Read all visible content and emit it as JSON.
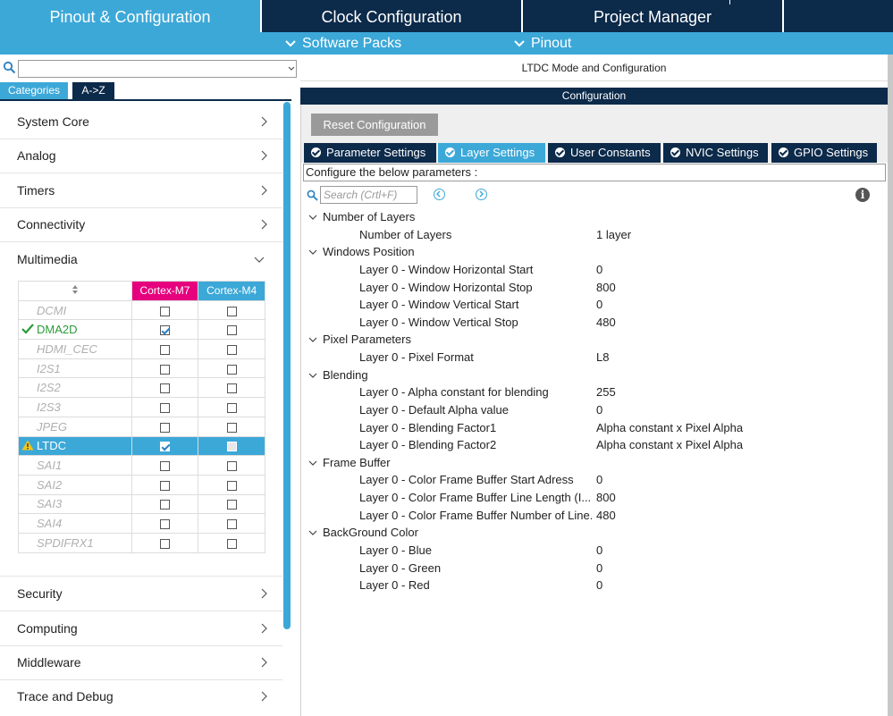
{
  "top_tabs": {
    "pinout": "Pinout & Configuration",
    "clock": "Clock Configuration",
    "project": "Project Manager"
  },
  "sub_menu": {
    "software_packs": "Software Packs",
    "pinout": "Pinout"
  },
  "left": {
    "search": {
      "value": "",
      "placeholder": ""
    },
    "tabs": {
      "categories": "Categories",
      "atoz": "A->Z"
    },
    "categories_top": [
      "System Core",
      "Analog",
      "Timers",
      "Connectivity",
      "Multimedia"
    ],
    "categories_bottom": [
      "Security",
      "Computing",
      "Middleware",
      "Trace and Debug"
    ],
    "table": {
      "col_m7": "Cortex-M7",
      "col_m4": "Cortex-M4",
      "rows": [
        {
          "name": "DCMI",
          "m7": false,
          "m4": false
        },
        {
          "name": "DMA2D",
          "m7": true,
          "m4": false
        },
        {
          "name": "HDMI_CEC",
          "m7": false,
          "m4": false
        },
        {
          "name": "I2S1",
          "m7": false,
          "m4": false
        },
        {
          "name": "I2S2",
          "m7": false,
          "m4": false
        },
        {
          "name": "I2S3",
          "m7": false,
          "m4": false
        },
        {
          "name": "JPEG",
          "m7": false,
          "m4": false
        },
        {
          "name": "LTDC",
          "m7": true,
          "m4": false
        },
        {
          "name": "SAI1",
          "m7": false,
          "m4": false
        },
        {
          "name": "SAI2",
          "m7": false,
          "m4": false
        },
        {
          "name": "SAI3",
          "m7": false,
          "m4": false
        },
        {
          "name": "SAI4",
          "m7": false,
          "m4": false
        },
        {
          "name": "SPDIFRX1",
          "m7": false,
          "m4": false
        }
      ]
    }
  },
  "right": {
    "mode_title": "LTDC Mode and Configuration",
    "config_header": "Configuration",
    "reset_label": "Reset Configuration",
    "tabs": [
      "Parameter Settings",
      "Layer Settings",
      "User Constants",
      "NVIC Settings",
      "GPIO Settings"
    ],
    "hint": "Configure the below parameters :",
    "search_placeholder": "Search (Crtl+F)",
    "info_icon": "i",
    "groups": [
      {
        "title": "Number of Layers",
        "params": [
          {
            "name": "Number of Layers",
            "value": "1 layer"
          }
        ]
      },
      {
        "title": "Windows Position",
        "params": [
          {
            "name": "Layer 0 - Window Horizontal Start",
            "value": "0"
          },
          {
            "name": "Layer 0 - Window Horizontal Stop",
            "value": "800"
          },
          {
            "name": "Layer 0 - Window Vertical Start",
            "value": "0"
          },
          {
            "name": "Layer 0 - Window Vertical Stop",
            "value": "480"
          }
        ]
      },
      {
        "title": "Pixel Parameters",
        "params": [
          {
            "name": "Layer 0 - Pixel Format",
            "value": "L8"
          }
        ]
      },
      {
        "title": "Blending",
        "params": [
          {
            "name": "Layer 0 - Alpha constant for blending",
            "value": "255"
          },
          {
            "name": "Layer 0 - Default Alpha value",
            "value": "0"
          },
          {
            "name": "Layer 0 - Blending Factor1",
            "value": "Alpha constant x Pixel Alpha"
          },
          {
            "name": "Layer 0 - Blending Factor2",
            "value": "Alpha constant x Pixel Alpha"
          }
        ]
      },
      {
        "title": "Frame Buffer",
        "params": [
          {
            "name": "Layer 0 - Color Frame Buffer Start Adress",
            "value": "0"
          },
          {
            "name": "Layer 0 - Color Frame Buffer Line Length (I...",
            "value": "800"
          },
          {
            "name": "Layer 0 - Color Frame Buffer Number of Line...",
            "value": "480"
          }
        ]
      },
      {
        "title": "BackGround Color",
        "params": [
          {
            "name": "Layer 0 - Blue",
            "value": "0"
          },
          {
            "name": "Layer 0 - Green",
            "value": "0"
          },
          {
            "name": "Layer 0 - Red",
            "value": "0"
          }
        ]
      }
    ]
  },
  "colors": {
    "navy": "#0c2a4a",
    "accent": "#3ca8d8",
    "m7": "#e6007e",
    "enabled": "#2a9a3a",
    "warning": "#f5c518"
  }
}
